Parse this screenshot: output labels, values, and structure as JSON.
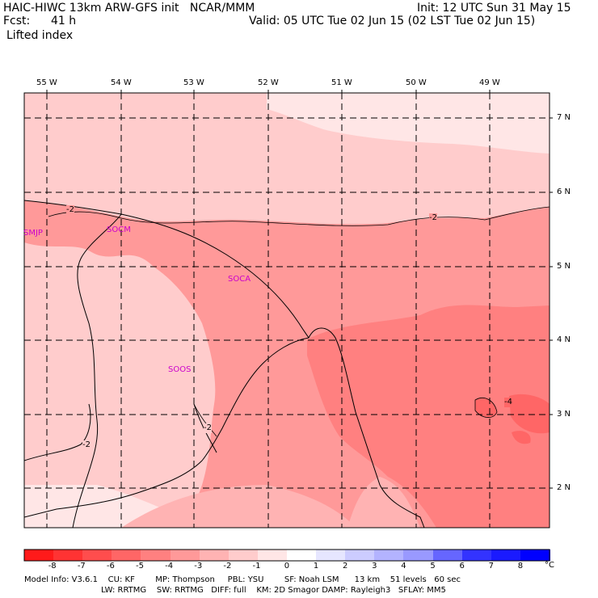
{
  "header": {
    "line1_left": "HAIC-HIWC 13km ARW-GFS init   NCAR/MMM",
    "fcst_label": "Fcst:",
    "fcst_value": "41 h",
    "field": "Lifted index",
    "init": "Init: 12 UTC Sun 31 May 15",
    "valid": "Valid: 05 UTC Tue 02 Jun 15 (02 LST Tue 02 Jun 15)"
  },
  "map": {
    "lon_labels": [
      "55 W",
      "54 W",
      "53 W",
      "52 W",
      "51 W",
      "50 W",
      "49 W"
    ],
    "lat_labels": [
      "7 N",
      "6 N",
      "5 N",
      "4 N",
      "3 N",
      "2 N"
    ],
    "stations": [
      "SMJP",
      "SOCM",
      "SOCA",
      "SOOS"
    ],
    "contour_labels": [
      "-2",
      "-2",
      "-2",
      "-2",
      "-4"
    ]
  },
  "colorbar": {
    "ticks": [
      "-8",
      "-7",
      "-6",
      "-5",
      "-4",
      "-3",
      "-2",
      "-1",
      "0",
      "1",
      "2",
      "3",
      "4",
      "5",
      "6",
      "7",
      "8"
    ],
    "unit": "°C",
    "colors": [
      "#ff1a1a",
      "#ff3333",
      "#ff4d4d",
      "#ff6666",
      "#ff8080",
      "#ff9999",
      "#ffb3b3",
      "#ffcccc",
      "#ffe6e6",
      "#ffffff",
      "#e6e6ff",
      "#ccccff",
      "#b3b3ff",
      "#9999ff",
      "#6666ff",
      "#3333ff",
      "#1a1aff",
      "#0000ff"
    ]
  },
  "footer": {
    "line1": "Model Info: V3.6.1    CU: KF        MP: Thompson     PBL: YSU        SF: Noah LSM      13 km    51 levels   60 sec",
    "line2": "LW: RRTMG    SW: RRTMG   DIFF: full    KM: 2D Smagor DAMP: Rayleigh3   SFLAY: MM5"
  }
}
